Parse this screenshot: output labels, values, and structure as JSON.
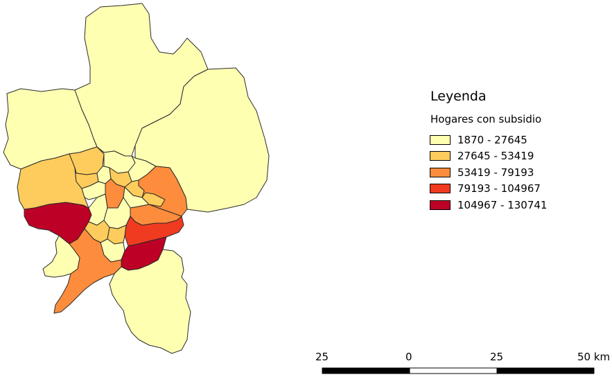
{
  "legend": {
    "title": "Leyenda",
    "subtitle": "Hogares con subsidio",
    "classes": [
      {
        "label": "1870 - 27645",
        "color": "#ffffb2"
      },
      {
        "label": "27645 - 53419",
        "color": "#fecc5c"
      },
      {
        "label": "53419 - 79193",
        "color": "#fd8d3c"
      },
      {
        "label": "79193 - 104967",
        "color": "#f03b20"
      },
      {
        "label": "104967 - 130741",
        "color": "#bd0026"
      }
    ]
  },
  "scale_bar": {
    "labels": [
      "25",
      "0",
      "25",
      "50 km"
    ]
  },
  "map": {
    "region_class_counts": {
      "1870 - 27645": 27,
      "27645 - 53419": 11,
      "53419 - 79193": 5,
      "79193 - 104967": 1,
      "104967 - 130741": 2
    }
  }
}
